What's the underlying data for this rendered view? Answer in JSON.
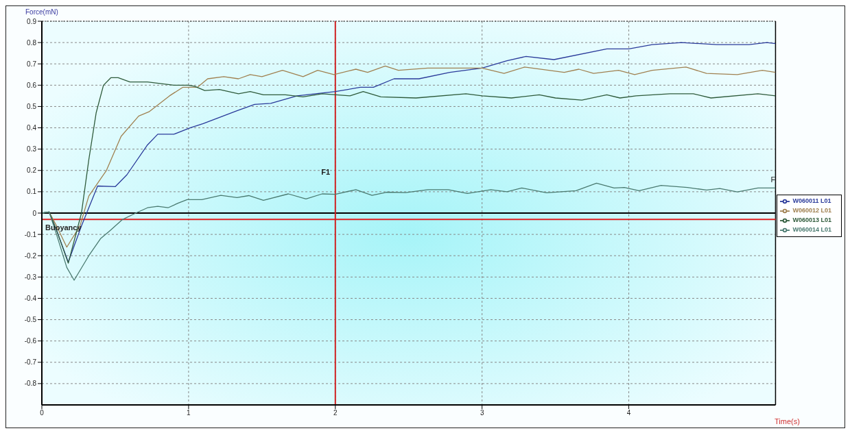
{
  "chart_data": {
    "type": "line",
    "xlabel": "Time(s)",
    "ylabel": "Force(mN)",
    "xlim": [
      0,
      5
    ],
    "xticks": [
      0,
      1,
      2,
      3,
      4
    ],
    "ylim": [
      -0.9,
      0.9
    ],
    "yticks": [
      -0.8,
      -0.7,
      -0.6,
      -0.5,
      -0.4,
      -0.3,
      -0.2,
      -0.1,
      0,
      0.1,
      0.2,
      0.3,
      0.4,
      0.5,
      0.6,
      0.7,
      0.8,
      0.9
    ],
    "grid": true,
    "legend": "right",
    "marker": "none",
    "line_style": "solid",
    "ref_lines": [
      {
        "axis": "y",
        "value": 0,
        "color": "#000000"
      },
      {
        "axis": "y",
        "value": -0.03,
        "label": "Buoyancy",
        "color": "#e02020"
      },
      {
        "axis": "x",
        "value": 2,
        "label": "F1",
        "color": "#d02020"
      }
    ],
    "annotations": [
      {
        "text": "F",
        "x": 5,
        "y": 0.12
      }
    ],
    "series": [
      {
        "name": "W060011 L01",
        "color": "#2a3a9a",
        "x": [
          0,
          0.05,
          0.1,
          0.18,
          0.27,
          0.38,
          0.5,
          0.58,
          0.72,
          0.79,
          0.9,
          1.01,
          1.1,
          1.33,
          1.45,
          1.56,
          1.74,
          2.0,
          2.17,
          2.26,
          2.4,
          2.57,
          2.78,
          3.0,
          3.17,
          3.3,
          3.49,
          3.85,
          4.0,
          4.16,
          4.36,
          4.6,
          4.82,
          4.94,
          5.0
        ],
        "values": [
          0,
          0.005,
          -0.08,
          -0.23,
          -0.06,
          0.127,
          0.124,
          0.18,
          0.32,
          0.37,
          0.37,
          0.4,
          0.42,
          0.48,
          0.51,
          0.515,
          0.55,
          0.57,
          0.59,
          0.59,
          0.63,
          0.63,
          0.66,
          0.68,
          0.715,
          0.735,
          0.72,
          0.77,
          0.77,
          0.79,
          0.8,
          0.79,
          0.79,
          0.8,
          0.795
        ]
      },
      {
        "name": "W060012 L01",
        "color": "#a08050",
        "x": [
          0,
          0.05,
          0.1,
          0.17,
          0.26,
          0.32,
          0.44,
          0.54,
          0.66,
          0.73,
          0.87,
          0.96,
          1.06,
          1.13,
          1.24,
          1.34,
          1.42,
          1.5,
          1.64,
          1.78,
          1.88,
          1.99,
          2.14,
          2.22,
          2.34,
          2.43,
          2.63,
          3.0,
          3.15,
          3.29,
          3.56,
          3.66,
          3.76,
          3.93,
          4.04,
          4.16,
          4.39,
          4.53,
          4.74,
          4.91,
          5.0
        ],
        "values": [
          0,
          0.005,
          -0.06,
          -0.16,
          -0.06,
          0.08,
          0.2,
          0.36,
          0.455,
          0.475,
          0.55,
          0.59,
          0.59,
          0.63,
          0.64,
          0.63,
          0.65,
          0.64,
          0.67,
          0.64,
          0.67,
          0.65,
          0.675,
          0.66,
          0.69,
          0.67,
          0.68,
          0.68,
          0.655,
          0.685,
          0.66,
          0.675,
          0.655,
          0.67,
          0.65,
          0.67,
          0.685,
          0.655,
          0.65,
          0.67,
          0.66
        ]
      },
      {
        "name": "W060013 L01",
        "color": "#2e5a3a",
        "x": [
          0,
          0.05,
          0.1,
          0.18,
          0.27,
          0.32,
          0.37,
          0.42,
          0.47,
          0.52,
          0.6,
          0.72,
          0.9,
          1.0,
          1.04,
          1.11,
          1.21,
          1.34,
          1.42,
          1.51,
          1.66,
          1.78,
          1.91,
          2.1,
          2.19,
          2.31,
          2.55,
          2.89,
          3.0,
          3.2,
          3.39,
          3.5,
          3.68,
          3.85,
          3.94,
          4.05,
          4.28,
          4.44,
          4.56,
          4.88,
          5.0
        ],
        "values": [
          0,
          0.005,
          -0.08,
          -0.235,
          0,
          0.25,
          0.47,
          0.6,
          0.635,
          0.635,
          0.615,
          0.615,
          0.6,
          0.6,
          0.595,
          0.575,
          0.58,
          0.56,
          0.57,
          0.555,
          0.555,
          0.545,
          0.56,
          0.55,
          0.57,
          0.545,
          0.54,
          0.56,
          0.55,
          0.54,
          0.555,
          0.54,
          0.53,
          0.555,
          0.54,
          0.55,
          0.56,
          0.56,
          0.54,
          0.56,
          0.55
        ]
      },
      {
        "name": "W060014 L01",
        "color": "#4a7a70",
        "x": [
          0,
          0.05,
          0.1,
          0.17,
          0.22,
          0.32,
          0.4,
          0.46,
          0.55,
          0.64,
          0.72,
          0.79,
          0.86,
          0.93,
          0.99,
          1.09,
          1.22,
          1.33,
          1.41,
          1.51,
          1.68,
          1.8,
          1.91,
          2.0,
          2.14,
          2.25,
          2.35,
          2.48,
          2.63,
          2.77,
          2.9,
          3.06,
          3.17,
          3.27,
          3.44,
          3.64,
          3.78,
          3.9,
          3.97,
          4.07,
          4.22,
          4.4,
          4.53,
          4.62,
          4.74,
          4.88,
          5.0
        ],
        "values": [
          0,
          0.005,
          -0.1,
          -0.255,
          -0.315,
          -0.2,
          -0.12,
          -0.085,
          -0.03,
          0,
          0.025,
          0.032,
          0.025,
          0.047,
          0.063,
          0.063,
          0.083,
          0.073,
          0.082,
          0.06,
          0.09,
          0.066,
          0.09,
          0.088,
          0.11,
          0.083,
          0.098,
          0.096,
          0.11,
          0.11,
          0.092,
          0.11,
          0.1,
          0.118,
          0.095,
          0.105,
          0.14,
          0.118,
          0.12,
          0.105,
          0.13,
          0.12,
          0.108,
          0.115,
          0.099,
          0.118,
          0.118
        ]
      }
    ]
  }
}
